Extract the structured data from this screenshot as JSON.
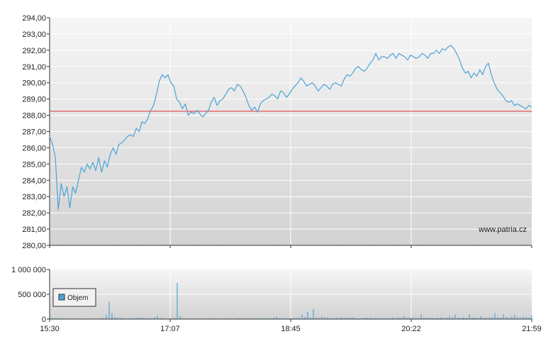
{
  "watermark": "www.patria.cz",
  "colors": {
    "price_line": "#4aa3d8",
    "reference_line": "#e03030",
    "volume_bar": "#4aa3d8",
    "grid": "#ffffff",
    "plot_bg_top": "#f6f6f6",
    "plot_bg_bottom": "#d2d2d2"
  },
  "chart_data": [
    {
      "type": "line",
      "title": "",
      "xlabel": "",
      "ylabel": "",
      "ylim": [
        280,
        294
      ],
      "y_ticks": [
        "280,00",
        "281,00",
        "282,00",
        "283,00",
        "284,00",
        "285,00",
        "286,00",
        "287,00",
        "288,00",
        "289,00",
        "290,00",
        "291,00",
        "292,00",
        "293,00",
        "294,00"
      ],
      "x_range": [
        "15:30",
        "21:59"
      ],
      "x_ticks": [
        "15:30",
        "17:07",
        "18:45",
        "20:22",
        "21:59"
      ],
      "reference_value": 288.25,
      "grid": true,
      "series": [
        {
          "values": [
            286.7,
            286.2,
            285.4,
            282.2,
            283.8,
            283.0,
            283.6,
            282.3,
            283.6,
            283.2,
            284.0,
            284.8,
            284.5,
            285.0,
            284.7,
            285.1,
            284.6,
            285.4,
            284.5,
            285.2,
            284.8,
            285.6,
            286.0,
            285.6,
            286.2,
            286.3,
            286.5,
            286.7,
            286.8,
            286.7,
            287.2,
            287.0,
            287.6,
            287.5,
            287.8,
            288.3,
            288.6,
            289.3,
            290.1,
            290.5,
            290.3,
            290.5,
            290.0,
            289.8,
            289.0,
            288.8,
            288.4,
            288.7,
            288.0,
            288.2,
            288.1,
            288.3,
            288.1,
            287.9,
            288.1,
            288.3,
            288.8,
            289.1,
            288.6,
            288.9,
            289.0,
            289.3,
            289.6,
            289.7,
            289.5,
            289.9,
            289.8,
            289.5,
            289.1,
            288.6,
            288.3,
            288.5,
            288.2,
            288.7,
            288.9,
            289.0,
            289.1,
            289.3,
            289.2,
            289.0,
            289.5,
            289.4,
            289.1,
            289.3,
            289.6,
            289.8,
            290.0,
            290.3,
            290.1,
            289.8,
            289.9,
            290.0,
            289.8,
            289.5,
            289.7,
            289.9,
            289.8,
            289.6,
            289.9,
            290.0,
            289.9,
            289.8,
            290.2,
            290.5,
            290.4,
            290.6,
            290.9,
            291.0,
            290.8,
            290.7,
            290.9,
            291.2,
            291.4,
            291.8,
            291.4,
            291.6,
            291.6,
            291.5,
            291.7,
            291.8,
            291.5,
            291.8,
            291.7,
            291.6,
            291.4,
            291.7,
            291.6,
            291.5,
            291.6,
            291.8,
            291.7,
            291.5,
            291.8,
            291.8,
            292.0,
            291.8,
            292.1,
            292.0,
            292.2,
            292.3,
            292.1,
            291.8,
            291.4,
            290.9,
            290.6,
            290.7,
            290.3,
            290.6,
            290.4,
            290.8,
            290.5,
            291.0,
            291.2,
            290.5,
            290.0,
            289.6,
            289.4,
            289.2,
            288.9,
            288.8,
            288.9,
            288.6,
            288.7,
            288.6,
            288.5,
            288.4,
            288.6,
            288.5
          ]
        }
      ]
    },
    {
      "type": "bar",
      "title": "",
      "xlabel": "",
      "ylabel": "",
      "ylim": [
        0,
        1000000
      ],
      "y_ticks": [
        "0",
        "500 000",
        "1 000 000"
      ],
      "x_range": [
        "15:30",
        "21:59"
      ],
      "x_ticks": [
        "15:30",
        "17:07",
        "18:45",
        "20:22",
        "21:59"
      ],
      "grid": true,
      "legend": {
        "placement": "left",
        "entries": [
          "Objem"
        ]
      },
      "series": [
        {
          "name": "Objem",
          "values": [
            60000,
            25000,
            20000,
            15000,
            12000,
            15000,
            10000,
            12000,
            8000,
            10000,
            12000,
            8000,
            10000,
            9000,
            8000,
            10000,
            12000,
            15000,
            20000,
            30000,
            80000,
            350000,
            120000,
            40000,
            25000,
            20000,
            15000,
            12000,
            10000,
            15000,
            20000,
            25000,
            30000,
            25000,
            20000,
            15000,
            12000,
            40000,
            60000,
            20000,
            15000,
            10000,
            12000,
            15000,
            20000,
            730000,
            60000,
            20000,
            15000,
            10000,
            8000,
            10000,
            12000,
            15000,
            10000,
            8000,
            12000,
            10000,
            15000,
            12000,
            10000,
            8000,
            10000,
            12000,
            15000,
            10000,
            12000,
            20000,
            15000,
            10000,
            12000,
            15000,
            10000,
            12000,
            15000,
            20000,
            25000,
            20000,
            15000,
            30000,
            50000,
            20000,
            15000,
            12000,
            10000,
            15000,
            20000,
            25000,
            30000,
            80000,
            40000,
            150000,
            30000,
            200000,
            40000,
            20000,
            50000,
            40000,
            30000,
            25000,
            20000,
            25000,
            20000,
            40000,
            30000,
            25000,
            30000,
            35000,
            20000,
            15000,
            20000,
            25000,
            30000,
            25000,
            20000,
            30000,
            25000,
            20000,
            15000,
            20000,
            25000,
            30000,
            20000,
            40000,
            30000,
            60000,
            25000,
            30000,
            30000,
            25000,
            30000,
            90000,
            30000,
            25000,
            30000,
            25000,
            20000,
            30000,
            40000,
            25000,
            30000,
            60000,
            40000,
            90000,
            30000,
            25000,
            40000,
            30000,
            100000,
            40000,
            30000,
            30000,
            60000,
            30000,
            25000,
            30000,
            40000,
            120000,
            40000,
            30000,
            90000,
            40000,
            30000,
            50000,
            80000,
            40000,
            30000,
            50000,
            40000,
            30000,
            70000
          ]
        }
      ]
    }
  ]
}
